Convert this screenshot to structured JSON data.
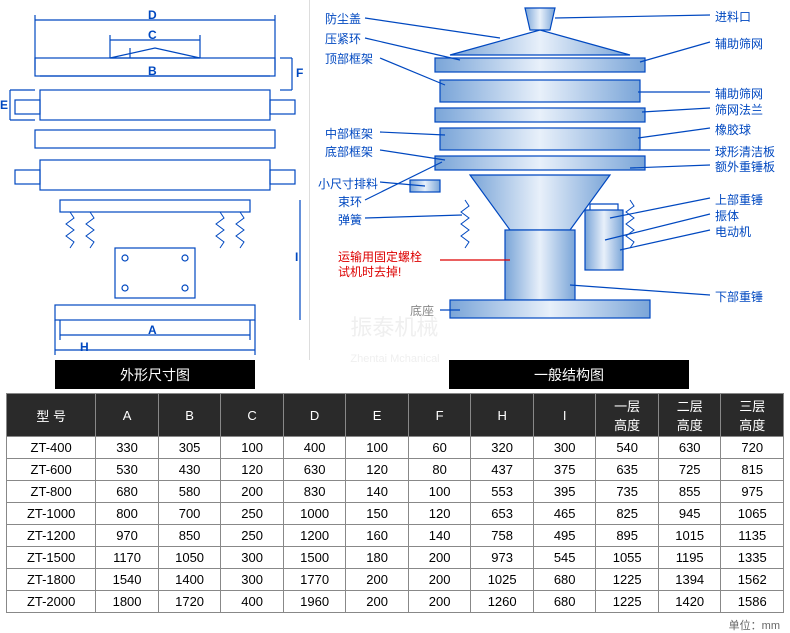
{
  "left_diagram": {
    "title": "外形尺寸图",
    "dim_labels": [
      "A",
      "B",
      "C",
      "D",
      "E",
      "F",
      "H",
      "I"
    ],
    "line_color": "#0048c0",
    "bg_color": "#ffffff"
  },
  "right_diagram": {
    "title": "一般结构图",
    "annotations_left": [
      "防尘盖",
      "压紧环",
      "顶部框架",
      "中部框架",
      "底部框架",
      "小尺寸排料",
      "束环",
      "弹簧"
    ],
    "annotations_right": [
      "进料口",
      "辅助筛网",
      "辅助筛网",
      "筛网法兰",
      "橡胶球",
      "球形清洁板",
      "额外重锤板",
      "上部重锤",
      "振体",
      "电动机",
      "下部重锤"
    ],
    "red_note1": "运输用固定螺栓",
    "red_note2": "试机时去掉!",
    "base_label": "底座",
    "line_color": "#0048c0",
    "fill_gradient": [
      "#7aa5d8",
      "#e8f0fa",
      "#7aa5d8"
    ]
  },
  "watermark": "振泰机械",
  "watermark_sub": "Zhentai Mchanical",
  "table": {
    "columns": [
      "型 号",
      "A",
      "B",
      "C",
      "D",
      "E",
      "F",
      "H",
      "I",
      "一层\n高度",
      "二层\n高度",
      "三层\n高度"
    ],
    "rows": [
      [
        "ZT-400",
        "330",
        "305",
        "100",
        "400",
        "100",
        "60",
        "320",
        "300",
        "540",
        "630",
        "720"
      ],
      [
        "ZT-600",
        "530",
        "430",
        "120",
        "630",
        "120",
        "80",
        "437",
        "375",
        "635",
        "725",
        "815"
      ],
      [
        "ZT-800",
        "680",
        "580",
        "200",
        "830",
        "140",
        "100",
        "553",
        "395",
        "735",
        "855",
        "975"
      ],
      [
        "ZT-1000",
        "800",
        "700",
        "250",
        "1000",
        "150",
        "120",
        "653",
        "465",
        "825",
        "945",
        "1065"
      ],
      [
        "ZT-1200",
        "970",
        "850",
        "250",
        "1200",
        "160",
        "140",
        "758",
        "495",
        "895",
        "1015",
        "1135"
      ],
      [
        "ZT-1500",
        "1170",
        "1050",
        "300",
        "1500",
        "180",
        "200",
        "973",
        "545",
        "1055",
        "1195",
        "1335"
      ],
      [
        "ZT-1800",
        "1540",
        "1400",
        "300",
        "1770",
        "200",
        "200",
        "1025",
        "680",
        "1225",
        "1394",
        "1562"
      ],
      [
        "ZT-2000",
        "1800",
        "1720",
        "400",
        "1960",
        "200",
        "200",
        "1260",
        "680",
        "1225",
        "1420",
        "1586"
      ]
    ],
    "header_bg": "#2a2a2a",
    "header_color": "#ffffff",
    "cell_bg": "#ffffff",
    "border_color": "#888888",
    "fontsize": 13
  },
  "footer_unit": "单位：mm"
}
